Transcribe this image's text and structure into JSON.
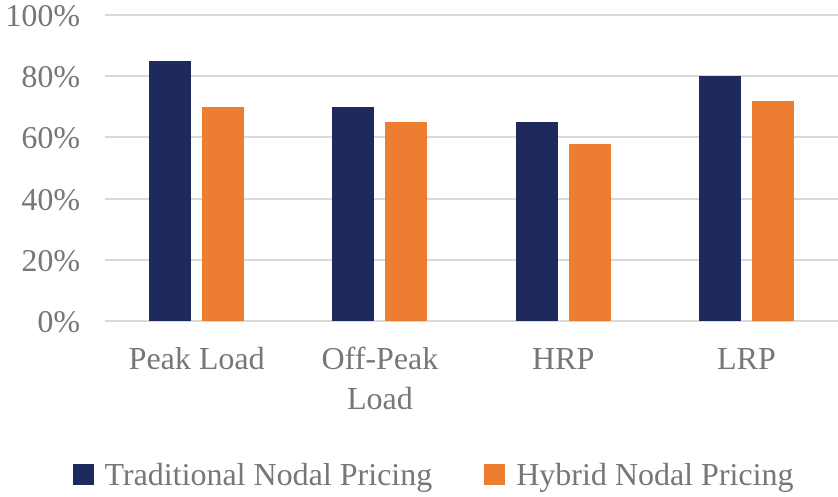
{
  "chart_data": {
    "type": "bar",
    "title": "",
    "xlabel": "",
    "ylabel": "",
    "categories": [
      "Peak Load",
      "Off-Peak Load",
      "HRP",
      "LRP"
    ],
    "series": [
      {
        "name": "Traditional Nodal Pricing",
        "color": "#1F2A5C",
        "values": [
          85,
          70,
          65,
          80
        ]
      },
      {
        "name": "Hybrid Nodal Pricing",
        "color": "#ED7D31",
        "values": [
          70,
          65,
          58,
          72
        ]
      }
    ],
    "ylim": [
      0,
      100
    ],
    "yticks": [
      0,
      20,
      40,
      60,
      80,
      100
    ],
    "ytick_labels": [
      "0%",
      "20%",
      "40%",
      "60%",
      "80%",
      "100%"
    ],
    "grid": true,
    "legend_position": "bottom"
  },
  "colors": {
    "background": "#FFFFFF",
    "gridline": "#D9D9D9",
    "axis_text": "#76767B",
    "traditional_nodal_pricing": "#1F2A5C",
    "hybrid_nodal_pricing": "#ED7D31"
  }
}
